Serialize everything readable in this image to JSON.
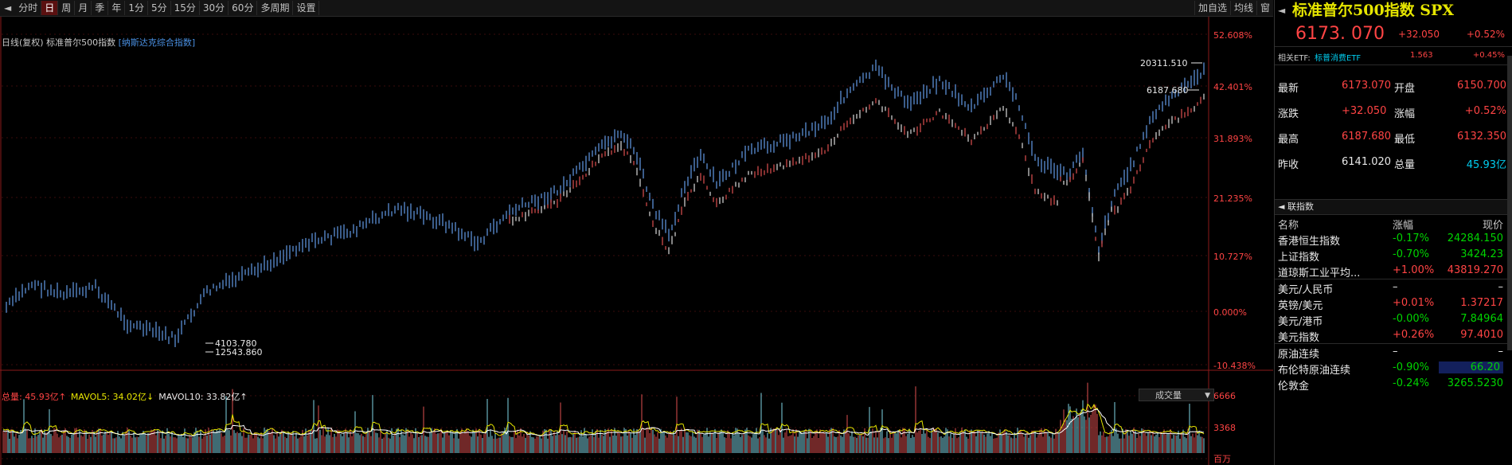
{
  "toolbar": {
    "back": "◄",
    "items": [
      "分时",
      "日",
      "周",
      "月",
      "季",
      "年",
      "1分",
      "5分",
      "15分",
      "30分",
      "60分",
      "多周期",
      "设置"
    ],
    "active_index": 1,
    "right_items": [
      "加自选",
      "均线",
      "窗"
    ]
  },
  "chart_header": {
    "period_label": "日线(复权)",
    "index_name": "标准普尔500指数",
    "compare_name": "[纳斯达克综合指数]"
  },
  "price_chart": {
    "pct_axis": [
      "52.608%",
      "42.401%",
      "31.893%",
      "21.235%",
      "10.727%",
      "0.000%",
      "-10.438%"
    ],
    "high_label": "20311.510",
    "spx_high_label": "6187.680",
    "low_label": "4103.780",
    "low_label2": "12543.860"
  },
  "volume_chart": {
    "legend": [
      {
        "label": "总量: 45.93亿↑",
        "color": "#ff4444"
      },
      {
        "label": "MAVOL5: 34.02亿↓",
        "color": "#e6e600"
      },
      {
        "label": "MAVOL10: 33.82亿↑",
        "color": "#e8e8e8"
      }
    ],
    "dropdown": "成交量",
    "axis": [
      "6666",
      "3368",
      "百万"
    ]
  },
  "panel": {
    "title": "标准普尔500指数 SPX",
    "price": "6173. 070",
    "change": "+32.050",
    "change_pct": "+0.52%",
    "etf": {
      "label": "相关ETF:",
      "name": "标普消费ETF",
      "price": "1.563",
      "pct": "+0.45%"
    },
    "quote": [
      {
        "l1": "最新",
        "v1": "6173.070",
        "c1": "red",
        "l2": "开盘",
        "v2": "6150.700",
        "c2": "red"
      },
      {
        "l1": "涨跌",
        "v1": "+32.050",
        "c1": "red",
        "l2": "涨幅",
        "v2": "+0.52%",
        "c2": "red"
      },
      {
        "l1": "最高",
        "v1": "6187.680",
        "c1": "red",
        "l2": "最低",
        "v2": "6132.350",
        "c2": "red"
      },
      {
        "l1": "昨收",
        "v1": "6141.020",
        "c1": "white",
        "l2": "总量",
        "v2": "45.93亿",
        "c2": "cyan"
      }
    ],
    "index_section": "联指数",
    "index_header": {
      "name": "名称",
      "pct": "涨幅",
      "price": "现价"
    },
    "indices": [
      {
        "name": "香港恒生指数",
        "pct": "-0.17%",
        "price": "24284.150",
        "pc": "green",
        "vc": "green"
      },
      {
        "name": "上证指数",
        "pct": "-0.70%",
        "price": "3424.23",
        "pc": "green",
        "vc": "green"
      },
      {
        "name": "道琼斯工业平均...",
        "pct": "+1.00%",
        "price": "43819.270",
        "pc": "red",
        "vc": "red",
        "sep": true
      },
      {
        "name": "美元/人民币",
        "pct": "–",
        "price": "–",
        "pc": "white",
        "vc": "white"
      },
      {
        "name": "英镑/美元",
        "pct": "+0.01%",
        "price": "1.37217",
        "pc": "red",
        "vc": "red"
      },
      {
        "name": "美元/港币",
        "pct": "-0.00%",
        "price": "7.84964",
        "pc": "green",
        "vc": "green"
      },
      {
        "name": "美元指数",
        "pct": "+0.26%",
        "price": "97.4010",
        "pc": "red",
        "vc": "red",
        "sep": true
      },
      {
        "name": "原油连续",
        "pct": "–",
        "price": "–",
        "pc": "white",
        "vc": "white"
      },
      {
        "name": "布伦特原油连续",
        "pct": "-0.90%",
        "price": "66.20",
        "pc": "green",
        "vc": "green",
        "hl": true
      },
      {
        "name": "伦敦金",
        "pct": "-0.24%",
        "price": "3265.5230",
        "pc": "green",
        "vc": "green"
      }
    ]
  }
}
